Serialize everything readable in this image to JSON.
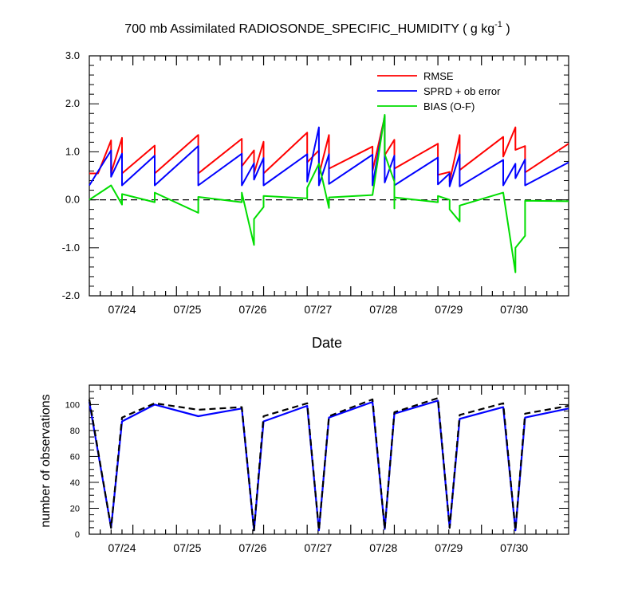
{
  "chart_data": [
    {
      "type": "line",
      "title": "700 mb Assimilated RADIOSONDE_SPECIFIC_HUMIDITY ( g kg",
      "title_unit_sup": "-1",
      "title_tail": " )",
      "xlabel": "Date",
      "ylabel": "",
      "x_ticklabels": [
        "07/24",
        "07/25",
        "07/26",
        "07/27",
        "07/28",
        "07/29",
        "07/30"
      ],
      "ylim": [
        -2.0,
        3.0
      ],
      "y_ticklabels": [
        "3.0",
        "2.0",
        "1.0",
        "0.0",
        "-1.0",
        "-2.0"
      ],
      "legend_position": "top-right",
      "series": [
        {
          "name": "RMSE",
          "color": "#ff0000",
          "points": [
            [
              0,
              0.55
            ],
            [
              0,
              0.55
            ],
            [
              0.2,
              0.55
            ],
            [
              0.5,
              1.24
            ],
            [
              0.5,
              0.56
            ],
            [
              0.75,
              1.29
            ],
            [
              0.75,
              0.55
            ],
            [
              1.5,
              1.13
            ],
            [
              1.5,
              0.55
            ],
            [
              2.5,
              1.35
            ],
            [
              2.5,
              0.55
            ],
            [
              3.5,
              1.27
            ],
            [
              3.5,
              0.7
            ],
            [
              3.78,
              1.03
            ],
            [
              3.78,
              0.55
            ],
            [
              4,
              1.21
            ],
            [
              4,
              0.55
            ],
            [
              5,
              1.4
            ],
            [
              5,
              0.78
            ],
            [
              5.27,
              1.03
            ],
            [
              5.27,
              0.52
            ],
            [
              5.5,
              1.35
            ],
            [
              5.5,
              0.65
            ],
            [
              6.5,
              1.11
            ],
            [
              6.5,
              0.6
            ],
            [
              6.78,
              1.73
            ],
            [
              6.78,
              0.93
            ],
            [
              7,
              1.25
            ],
            [
              7,
              0.65
            ],
            [
              8,
              1.17
            ],
            [
              8,
              0.52
            ],
            [
              8.27,
              0.58
            ],
            [
              8.27,
              0.38
            ],
            [
              8.5,
              1.35
            ],
            [
              8.5,
              0.62
            ],
            [
              9.5,
              1.31
            ],
            [
              9.5,
              0.9
            ],
            [
              9.78,
              1.51
            ],
            [
              9.78,
              1.04
            ],
            [
              10,
              1.12
            ],
            [
              10,
              0.57
            ],
            [
              11,
              1.17
            ]
          ]
        },
        {
          "name": "SPRD + ob error",
          "color": "#0000ff",
          "points": [
            [
              0,
              0.3
            ],
            [
              0.5,
              1.03
            ],
            [
              0.5,
              0.48
            ],
            [
              0.75,
              0.96
            ],
            [
              0.75,
              0.3
            ],
            [
              1.5,
              0.92
            ],
            [
              1.5,
              0.3
            ],
            [
              2.5,
              1.12
            ],
            [
              2.5,
              0.3
            ],
            [
              3.5,
              0.96
            ],
            [
              3.5,
              0.3
            ],
            [
              3.78,
              0.76
            ],
            [
              3.78,
              0.42
            ],
            [
              4,
              0.87
            ],
            [
              4,
              0.3
            ],
            [
              5,
              0.95
            ],
            [
              5,
              0.38
            ],
            [
              5.27,
              1.51
            ],
            [
              5.27,
              0.3
            ],
            [
              5.5,
              0.95
            ],
            [
              5.5,
              0.33
            ],
            [
              6.5,
              0.94
            ],
            [
              6.5,
              0.3
            ],
            [
              6.78,
              1.75
            ],
            [
              6.78,
              0.36
            ],
            [
              7,
              0.92
            ],
            [
              7,
              0.3
            ],
            [
              8,
              0.88
            ],
            [
              8,
              0.32
            ],
            [
              8.27,
              0.55
            ],
            [
              8.27,
              0.28
            ],
            [
              8.5,
              0.95
            ],
            [
              8.5,
              0.28
            ],
            [
              9.5,
              0.83
            ],
            [
              9.5,
              0.3
            ],
            [
              9.78,
              0.75
            ],
            [
              9.78,
              0.45
            ],
            [
              10,
              0.84
            ],
            [
              10,
              0.3
            ],
            [
              11,
              0.78
            ]
          ]
        },
        {
          "name": "BIAS (O-F)",
          "color": "#00dd00",
          "points": [
            [
              0,
              0.0
            ],
            [
              0.5,
              0.3
            ],
            [
              0.75,
              -0.1
            ],
            [
              0.75,
              0.12
            ],
            [
              1.5,
              -0.05
            ],
            [
              1.5,
              0.15
            ],
            [
              2.5,
              -0.27
            ],
            [
              2.5,
              0.06
            ],
            [
              3.5,
              -0.05
            ],
            [
              3.5,
              0.15
            ],
            [
              3.78,
              -0.94
            ],
            [
              3.78,
              -0.4
            ],
            [
              4,
              -0.15
            ],
            [
              4,
              0.08
            ],
            [
              5,
              0.03
            ],
            [
              5,
              0.25
            ],
            [
              5.27,
              0.75
            ],
            [
              5.5,
              -0.17
            ],
            [
              5.5,
              0.05
            ],
            [
              6.5,
              0.1
            ],
            [
              6.78,
              1.77
            ],
            [
              6.78,
              0.95
            ],
            [
              7,
              0.38
            ],
            [
              7,
              -0.18
            ],
            [
              7,
              0.05
            ],
            [
              8,
              -0.05
            ],
            [
              8,
              0.08
            ],
            [
              8.27,
              0.0
            ],
            [
              8.27,
              -0.2
            ],
            [
              8.5,
              -0.45
            ],
            [
              8.5,
              -0.12
            ],
            [
              9.5,
              0.15
            ],
            [
              9.78,
              -1.51
            ],
            [
              9.78,
              -1.0
            ],
            [
              10,
              -0.75
            ],
            [
              10,
              -0.3
            ],
            [
              10,
              -0.02
            ],
            [
              11,
              -0.03
            ]
          ]
        }
      ]
    },
    {
      "type": "line",
      "title": "",
      "xlabel": "",
      "ylabel": "number of observations",
      "x_ticklabels": [
        "07/24",
        "07/25",
        "07/26",
        "07/27",
        "07/28",
        "07/29",
        "07/30"
      ],
      "ylim": [
        0,
        115
      ],
      "y_ticklabels": [
        "100",
        "80",
        "60",
        "40",
        "20",
        "0"
      ],
      "series": [
        {
          "color": "#0000ff",
          "dashed": false,
          "points": [
            [
              0,
              102
            ],
            [
              0.5,
              5
            ],
            [
              0.75,
              87
            ],
            [
              1.5,
              100
            ],
            [
              2.5,
              91
            ],
            [
              3.5,
              97
            ],
            [
              3.78,
              3
            ],
            [
              4,
              87
            ],
            [
              5,
              99
            ],
            [
              5.27,
              3
            ],
            [
              5.5,
              90
            ],
            [
              6.5,
              102
            ],
            [
              6.78,
              4
            ],
            [
              7,
              93
            ],
            [
              8,
              103
            ],
            [
              8.27,
              5
            ],
            [
              8.5,
              89
            ],
            [
              9.5,
              98
            ],
            [
              9.78,
              3
            ],
            [
              10,
              90
            ],
            [
              11,
              97
            ]
          ]
        },
        {
          "color": "#000000",
          "dashed": true,
          "points": [
            [
              0,
              104
            ],
            [
              0.5,
              5
            ],
            [
              0.75,
              90
            ],
            [
              1.5,
              101
            ],
            [
              2.5,
              96
            ],
            [
              3.5,
              98
            ],
            [
              3.78,
              3
            ],
            [
              4,
              91
            ],
            [
              5,
              101
            ],
            [
              5.27,
              3
            ],
            [
              5.5,
              91
            ],
            [
              6.5,
              104
            ],
            [
              6.78,
              4
            ],
            [
              7,
              94
            ],
            [
              8,
              105
            ],
            [
              8.27,
              5
            ],
            [
              8.5,
              92
            ],
            [
              9.5,
              101
            ],
            [
              9.78,
              3
            ],
            [
              10,
              93
            ],
            [
              11,
              99
            ]
          ]
        }
      ]
    }
  ]
}
